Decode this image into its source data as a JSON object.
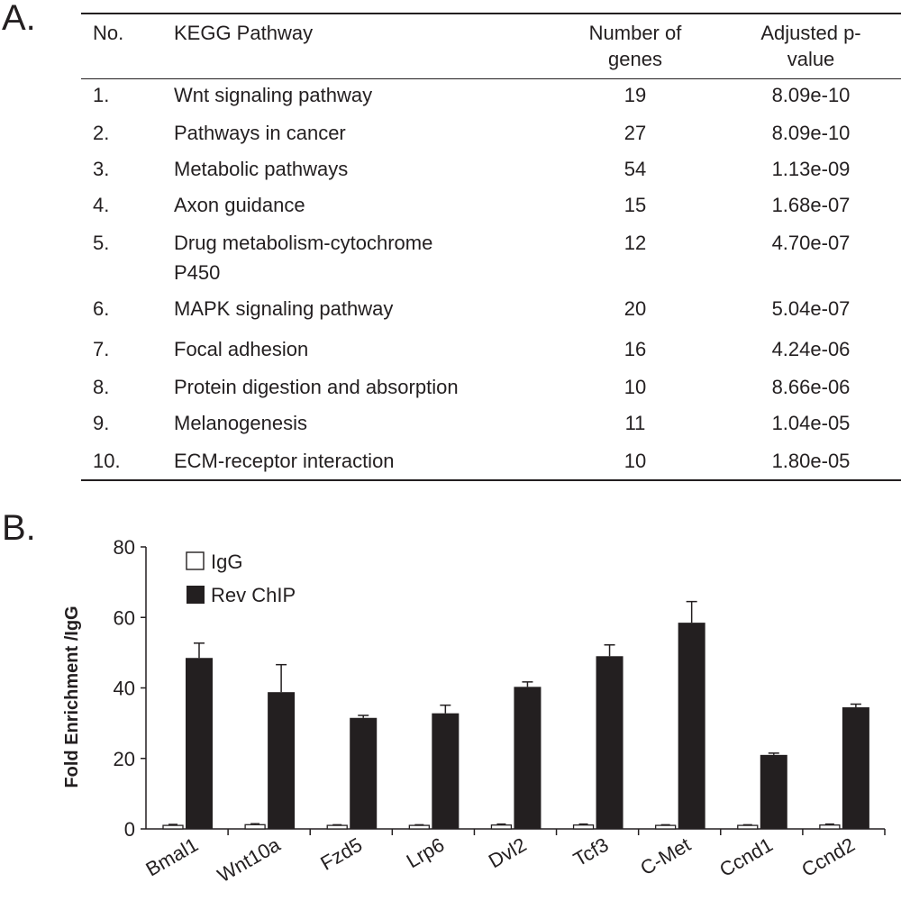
{
  "panel_a": {
    "label": "A.",
    "headers": {
      "no": "No.",
      "pathway": "KEGG Pathway",
      "genes_line1": "Number of",
      "genes_line2": "genes",
      "pvalue_line1": "Adjusted p-",
      "pvalue_line2": "value"
    },
    "rows": [
      {
        "no": "1.",
        "pathway": "Wnt signaling pathway",
        "genes": "19",
        "pvalue": "8.09e-10"
      },
      {
        "no": "2.",
        "pathway": "Pathways in cancer",
        "genes": "27",
        "pvalue": "8.09e-10"
      },
      {
        "no": "3.",
        "pathway": "Metabolic pathways",
        "genes": "54",
        "pvalue": "1.13e-09"
      },
      {
        "no": "4.",
        "pathway": "Axon guidance",
        "genes": "15",
        "pvalue": "1.68e-07"
      },
      {
        "no": "5.",
        "pathway": "Drug metabolism-cytochrome",
        "pathway_line2": "P450",
        "genes": "12",
        "pvalue": "4.70e-07"
      },
      {
        "no": "6.",
        "pathway": "MAPK signaling pathway",
        "genes": "20",
        "pvalue": "5.04e-07"
      },
      {
        "no": "7.",
        "pathway": "Focal adhesion",
        "genes": "16",
        "pvalue": "4.24e-06"
      },
      {
        "no": "8.",
        "pathway": "Protein digestion and absorption",
        "genes": "10",
        "pvalue": "8.66e-06"
      },
      {
        "no": "9.",
        "pathway": "Melanogenesis",
        "genes": "11",
        "pvalue": "1.04e-05"
      },
      {
        "no": "10.",
        "pathway": "ECM-receptor interaction",
        "genes": "10",
        "pvalue": "1.80e-05"
      }
    ]
  },
  "panel_b": {
    "label": "B."
  },
  "chart_data": {
    "type": "bar",
    "title": "",
    "xlabel": "",
    "ylabel": "Fold Enrichment /IgG",
    "ylim": [
      0,
      80
    ],
    "yticks": [
      "0",
      "20",
      "40",
      "60",
      "80"
    ],
    "legend_position": "top-left",
    "categories": [
      "Bmal1",
      "Wnt10a",
      "Fzd5",
      "Lrp6",
      "Dvl2",
      "Tcf3",
      "C-Met",
      "Ccnd1",
      "Ccnd2"
    ],
    "series": [
      {
        "name": "IgG",
        "color": "#ffffff",
        "values": [
          1,
          1.2,
          1,
          1,
          1.1,
          1.1,
          1,
          1,
          1.1
        ],
        "errors": [
          0.3,
          0.3,
          0.2,
          0.2,
          0.3,
          0.3,
          0.2,
          0.2,
          0.3
        ]
      },
      {
        "name": "Rev ChIP",
        "color": "#231f20",
        "values": [
          48.5,
          38.8,
          31.5,
          32.8,
          40.3,
          49,
          58.5,
          21,
          34.5
        ],
        "errors": [
          4.2,
          7.8,
          0.7,
          2.3,
          1.4,
          3.2,
          6,
          0.5,
          0.9
        ]
      }
    ]
  }
}
